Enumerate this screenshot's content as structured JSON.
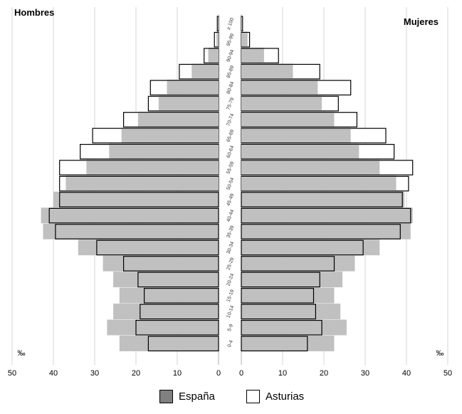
{
  "chart_data": {
    "type": "bar",
    "subtype": "population-pyramid",
    "left_title": "Hombres",
    "right_title": "Mujeres",
    "unit_label": "‰",
    "x_ticks_left": [
      "50",
      "40",
      "30",
      "20",
      "10",
      "0"
    ],
    "x_ticks_right": [
      "0",
      "10",
      "20",
      "30",
      "40",
      "50"
    ],
    "xlim": [
      0,
      50
    ],
    "grid": true,
    "legend_position": "bottom",
    "categories": [
      "≥ 100",
      "95-99",
      "90-94",
      "85-89",
      "80-84",
      "75-79",
      "70-74",
      "65-69",
      "60-64",
      "55-59",
      "50-54",
      "45-49",
      "40-44",
      "35-39",
      "30-34",
      "25-29",
      "20-24",
      "15-19",
      "10-14",
      "5-9",
      "0-4"
    ],
    "series": [
      {
        "name": "España",
        "color": "#c0c0c0",
        "style": "filled",
        "hombres": [
          0.1,
          0.5,
          2.5,
          6.5,
          12.5,
          14.5,
          19.5,
          23.5,
          26.5,
          32.0,
          37.0,
          40.0,
          43.0,
          42.5,
          34.0,
          28.0,
          25.5,
          24.0,
          25.5,
          27.0,
          24.0
        ],
        "mujeres": [
          0.2,
          1.5,
          5.5,
          12.5,
          18.5,
          19.5,
          22.5,
          26.5,
          28.5,
          33.5,
          37.5,
          39.5,
          41.5,
          41.0,
          33.5,
          27.5,
          24.5,
          22.5,
          24.0,
          25.5,
          22.5
        ]
      },
      {
        "name": "Asturias",
        "color": "#ffffff",
        "style": "outline",
        "hombres": [
          0.3,
          1.0,
          3.5,
          9.5,
          16.5,
          17.0,
          23.0,
          30.5,
          33.5,
          38.5,
          38.5,
          38.5,
          41.0,
          39.5,
          29.5,
          23.0,
          19.5,
          18.0,
          19.0,
          20.0,
          17.0
        ],
        "mujeres": [
          0.3,
          2.0,
          9.0,
          19.0,
          26.5,
          23.5,
          28.0,
          35.0,
          37.0,
          41.5,
          40.5,
          39.0,
          41.0,
          38.5,
          29.5,
          22.5,
          19.0,
          17.5,
          18.0,
          19.5,
          16.0
        ]
      }
    ]
  }
}
